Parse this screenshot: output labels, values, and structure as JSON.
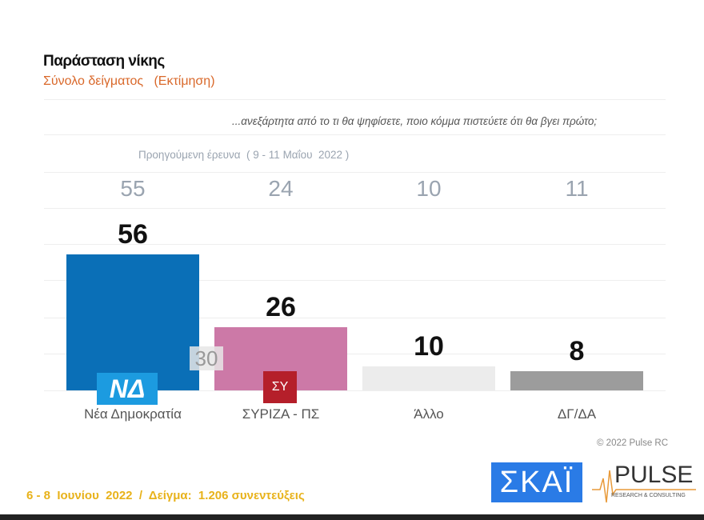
{
  "title": "Παράσταση νίκης",
  "subtitle": "Σύνολο δείγματος   (Εκτίμηση)",
  "question": "...ανεξάρτητα από το τι θα ψηφίσετε, ποιο κόμμα πιστεύετε ότι θα βγει πρώτο;",
  "previous_label": "Προηγούμενη έρευνα  ( 9 - 11 Μαΐου  2022 )",
  "stray_label": "30",
  "copyright": "© 2022 Pulse RC",
  "footer": "6 - 8  Ιουνίου  2022  /  Δείγμα:  1.206 συνεντεύξεις",
  "logos": {
    "skai": "ΣΚΑΪ",
    "pulse": "PULSE",
    "pulse_sub": "RESEARCH & CONSULTING",
    "nd": "ΝΔ",
    "syriza": "ΣΥ"
  },
  "chart_data": {
    "type": "bar",
    "title": "Παράσταση νίκης",
    "categories": [
      "Νέα Δημοκρατία",
      "ΣΥΡΙΖΑ - ΠΣ",
      "Άλλο",
      "ΔΓ/ΔΑ"
    ],
    "values": [
      56,
      26,
      10,
      8
    ],
    "previous_values": [
      55,
      24,
      10,
      11
    ],
    "colors": [
      "#0a6fb7",
      "#cc79a7",
      "#ececec",
      "#9c9c9c"
    ],
    "ylim": [
      0,
      60
    ],
    "grid": true
  }
}
